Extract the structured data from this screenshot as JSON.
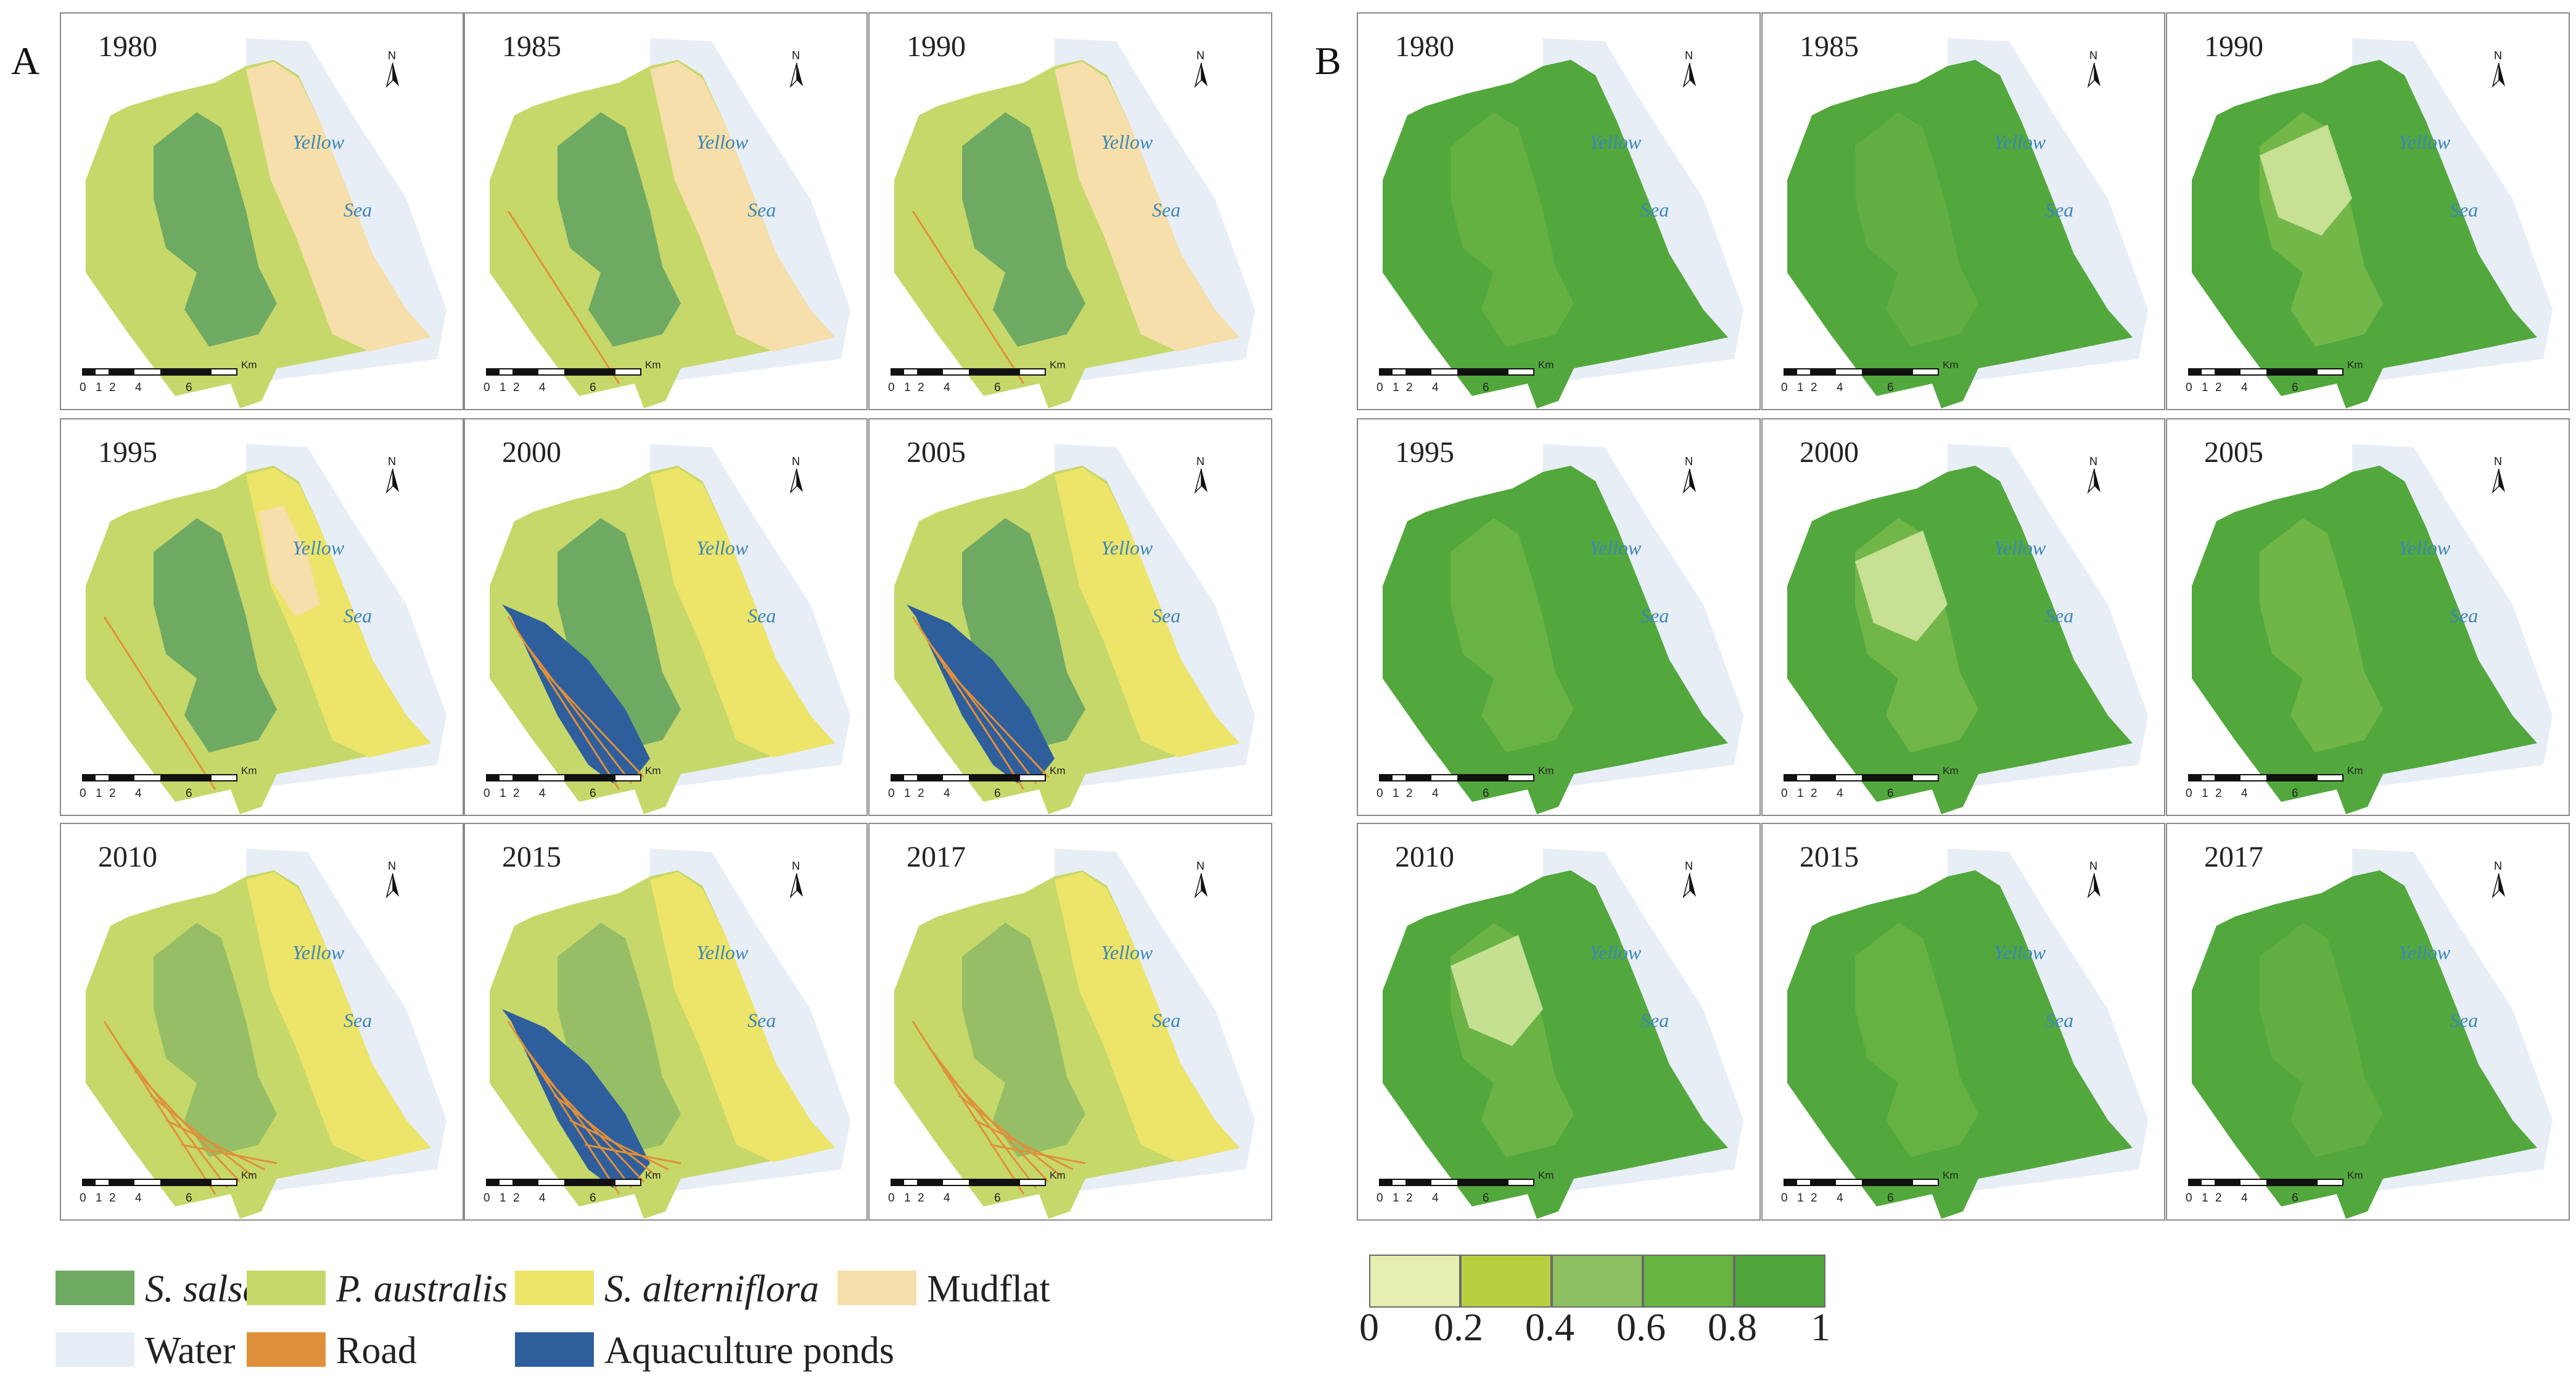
{
  "panels": {
    "a": {
      "letter": "A",
      "tiles": [
        {
          "year": "1980",
          "sea1": "Yellow",
          "sea2": "Sea"
        },
        {
          "year": "1985",
          "sea1": "Yellow",
          "sea2": "Sea"
        },
        {
          "year": "1990",
          "sea1": "Yellow",
          "sea2": "Sea"
        },
        {
          "year": "1995",
          "sea1": "Yellow",
          "sea2": "Sea"
        },
        {
          "year": "2000",
          "sea1": "Yellow",
          "sea2": "Sea"
        },
        {
          "year": "2005",
          "sea1": "Yellow",
          "sea2": "Sea"
        },
        {
          "year": "2010",
          "sea1": "Yellow",
          "sea2": "Sea"
        },
        {
          "year": "2015",
          "sea1": "Yellow",
          "sea2": "Sea"
        },
        {
          "year": "2017",
          "sea1": "Yellow",
          "sea2": "Sea"
        }
      ]
    },
    "b": {
      "letter": "B",
      "tiles": [
        {
          "year": "1980",
          "sea1": "Yellow",
          "sea2": "Sea"
        },
        {
          "year": "1985",
          "sea1": "Yellow",
          "sea2": "Sea"
        },
        {
          "year": "1990",
          "sea1": "Yellow",
          "sea2": "Sea"
        },
        {
          "year": "1995",
          "sea1": "Yellow",
          "sea2": "Sea"
        },
        {
          "year": "2000",
          "sea1": "Yellow",
          "sea2": "Sea"
        },
        {
          "year": "2005",
          "sea1": "Yellow",
          "sea2": "Sea"
        },
        {
          "year": "2010",
          "sea1": "Yellow",
          "sea2": "Sea"
        },
        {
          "year": "2015",
          "sea1": "Yellow",
          "sea2": "Sea"
        },
        {
          "year": "2017",
          "sea1": "Yellow",
          "sea2": "Sea"
        }
      ]
    }
  },
  "map_common": {
    "north_letter": "N",
    "scale_unit": "Km",
    "scale_ticks": [
      "0",
      "1",
      "2",
      "4",
      "6"
    ]
  },
  "legend": {
    "items": [
      {
        "label": "S. salsa",
        "color": "#6faa63",
        "italic": true
      },
      {
        "label": "P. australis",
        "color": "#c6d86a",
        "italic": true
      },
      {
        "label": "S. alterniflora",
        "color": "#ede46a",
        "italic": true
      },
      {
        "label": "Mudflat",
        "color": "#f6dfaa",
        "italic": false
      },
      {
        "label": "Water",
        "color": "#e6edf6",
        "italic": false
      },
      {
        "label": "Road",
        "color": "#e0903a",
        "italic": false
      },
      {
        "label": "Aquaculture ponds",
        "color": "#2f5e9c",
        "italic": false
      }
    ]
  },
  "colorbar": {
    "colors": [
      "#e6eeb0",
      "#b8d040",
      "#8cc060",
      "#68b440",
      "#50a63a"
    ],
    "labels": [
      "0",
      "0.2",
      "0.4",
      "0.6",
      "0.8",
      "1"
    ]
  },
  "colors": {
    "sea": "#e8eef6",
    "salsa": "#6faa63",
    "australis": "#c6d86a",
    "alterniflora": "#ede46a",
    "mudflat": "#f6dfaa",
    "road": "#e0903a",
    "pond": "#2f5e9c",
    "ndvi_high": "#52a83c",
    "ndvi_mid": "#7fbc4e",
    "ndvi_low": "#d6e8a0"
  }
}
